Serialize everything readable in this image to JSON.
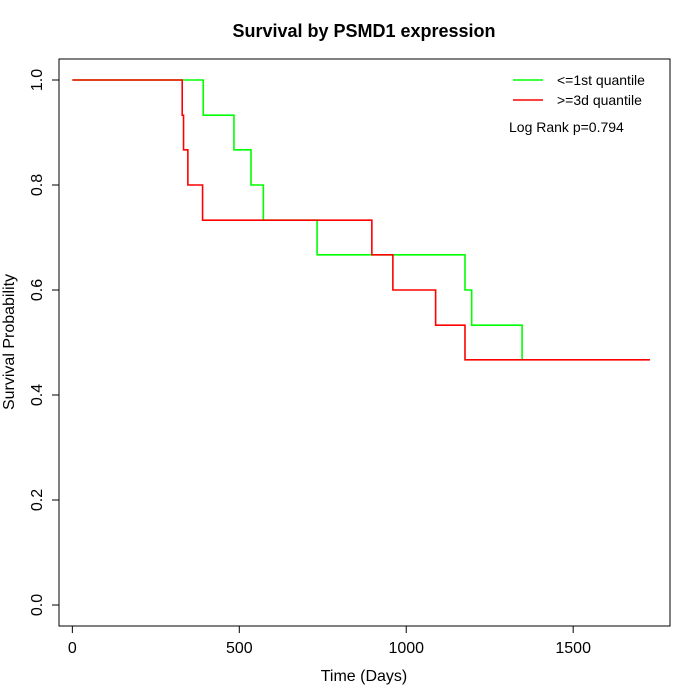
{
  "chart_data": {
    "type": "line",
    "title": "Survival by PSMD1 expression",
    "xlabel": "Time (Days)",
    "ylabel": "Survival Probability",
    "xlim": [
      -40,
      1790
    ],
    "ylim": [
      -0.04,
      1.04
    ],
    "xticks": [
      0,
      500,
      1000,
      1500
    ],
    "yticks": [
      0.0,
      0.2,
      0.4,
      0.6,
      0.8,
      1.0
    ],
    "xtick_labels": [
      "0",
      "500",
      "1000",
      "1500"
    ],
    "ytick_labels": [
      "0.0",
      "0.2",
      "0.4",
      "0.6",
      "0.8",
      "1.0"
    ],
    "legend_position": "top-right",
    "annotation": "Log Rank p=0.794",
    "grid": false,
    "series": [
      {
        "name": "<=1st quantile",
        "color": "#00ff00",
        "x": [
          0,
          392,
          484,
          535,
          572,
          733,
          1176,
          1196,
          1347,
          1347
        ],
        "y": [
          1.0,
          0.933,
          0.867,
          0.8,
          0.733,
          0.667,
          0.6,
          0.533,
          0.467,
          0.467
        ]
      },
      {
        "name": ">=3d quantile",
        "color": "#ff0000",
        "x": [
          0,
          329,
          333,
          346,
          390,
          897,
          960,
          1088,
          1176,
          1730
        ],
        "y": [
          1.0,
          0.933,
          0.867,
          0.8,
          0.733,
          0.667,
          0.6,
          0.533,
          0.467,
          0.467
        ]
      }
    ]
  }
}
